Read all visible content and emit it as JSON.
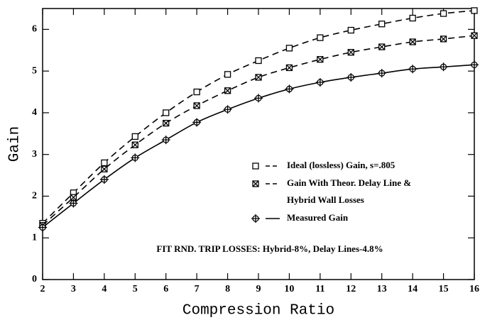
{
  "chart_data": {
    "type": "line",
    "xlabel": "Compression Ratio",
    "ylabel": "Gain",
    "x": [
      2,
      3,
      4,
      5,
      6,
      7,
      8,
      9,
      10,
      11,
      12,
      13,
      14,
      15,
      16
    ],
    "series": [
      {
        "name": "Ideal (lossless) Gain, s=.805",
        "color": "#000000",
        "dash": true,
        "marker": "square",
        "values": [
          1.35,
          2.08,
          2.8,
          3.43,
          4.0,
          4.5,
          4.92,
          5.25,
          5.55,
          5.8,
          5.98,
          6.13,
          6.27,
          6.38,
          6.45
        ]
      },
      {
        "name": "Gain With Theor. Delay Line & Hybrid Wall Losses",
        "color": "#000000",
        "dash": true,
        "marker": "star",
        "values": [
          1.3,
          1.97,
          2.65,
          3.23,
          3.75,
          4.17,
          4.53,
          4.85,
          5.08,
          5.28,
          5.45,
          5.58,
          5.7,
          5.77,
          5.85
        ]
      },
      {
        "name": "Measured Gain",
        "color": "#000000",
        "dash": false,
        "marker": "circle-cross",
        "values": [
          1.25,
          1.83,
          2.4,
          2.92,
          3.35,
          3.77,
          4.08,
          4.35,
          4.57,
          4.73,
          4.85,
          4.95,
          5.05,
          5.1,
          5.15
        ]
      }
    ],
    "annotation": "FIT RND. TRIP LOSSES: Hybrid-8%, Delay Lines-4.8%",
    "xlim": [
      2,
      16
    ],
    "xticks": [
      2,
      3,
      4,
      5,
      6,
      7,
      8,
      9,
      10,
      11,
      12,
      13,
      14,
      15,
      16
    ],
    "ylim": [
      0,
      6.5
    ],
    "yticks": [
      0,
      1,
      2,
      3,
      4,
      5,
      6
    ],
    "legend": "right",
    "grid": false
  }
}
